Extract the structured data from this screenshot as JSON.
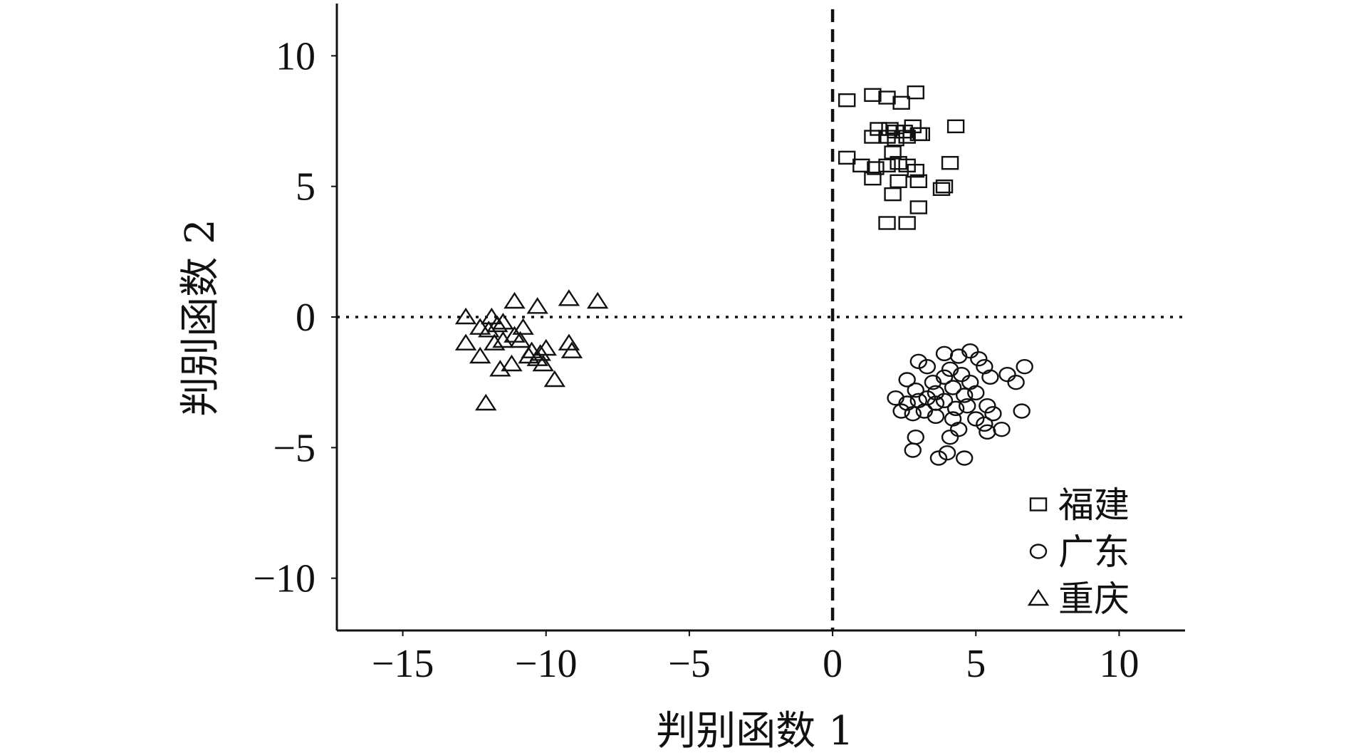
{
  "chart_data": {
    "type": "scatter",
    "xlabel": "判别函数 1",
    "ylabel": "判别函数 2",
    "xlim": [
      -17.3,
      12.3
    ],
    "ylim": [
      -12,
      12
    ],
    "xticks": [
      -15,
      -10,
      -5,
      0,
      5,
      10
    ],
    "yticks": [
      -10,
      -5,
      0,
      5,
      10
    ],
    "xtick_labels": [
      "−15",
      "−10",
      "−5",
      "0",
      "5",
      "10"
    ],
    "ytick_labels": [
      "−10",
      "−5",
      "0",
      "5",
      "10"
    ],
    "grid": false,
    "reference_lines": [
      {
        "orientation": "vertical",
        "value": 0,
        "style": "dashed"
      },
      {
        "orientation": "horizontal",
        "value": 0,
        "style": "dotted"
      }
    ],
    "legend_position": "bottom-right",
    "series": [
      {
        "name": "福建",
        "marker": "square",
        "points": [
          [
            0.5,
            6.1
          ],
          [
            0.5,
            8.3
          ],
          [
            1.4,
            8.5
          ],
          [
            1.9,
            8.4
          ],
          [
            2.4,
            8.2
          ],
          [
            2.9,
            8.6
          ],
          [
            1.6,
            7.2
          ],
          [
            2.0,
            7.2
          ],
          [
            2.2,
            7.1
          ],
          [
            2.5,
            7.1
          ],
          [
            2.8,
            7.3
          ],
          [
            3.1,
            7.0
          ],
          [
            4.3,
            7.3
          ],
          [
            1.4,
            6.9
          ],
          [
            1.9,
            6.9
          ],
          [
            2.2,
            6.8
          ],
          [
            2.6,
            6.9
          ],
          [
            3.0,
            7.0
          ],
          [
            2.1,
            6.3
          ],
          [
            1.0,
            5.8
          ],
          [
            1.5,
            5.7
          ],
          [
            1.9,
            5.8
          ],
          [
            2.3,
            5.9
          ],
          [
            2.6,
            5.8
          ],
          [
            2.9,
            5.6
          ],
          [
            4.1,
            5.9
          ],
          [
            1.4,
            5.3
          ],
          [
            2.3,
            5.2
          ],
          [
            3.0,
            5.2
          ],
          [
            3.8,
            4.9
          ],
          [
            3.9,
            5.0
          ],
          [
            2.1,
            4.7
          ],
          [
            3.0,
            4.2
          ],
          [
            1.9,
            3.6
          ],
          [
            2.6,
            3.6
          ]
        ]
      },
      {
        "name": "广东",
        "marker": "circle",
        "points": [
          [
            4.8,
            -1.3
          ],
          [
            3.9,
            -1.4
          ],
          [
            4.4,
            -1.5
          ],
          [
            3.0,
            -1.7
          ],
          [
            3.3,
            -1.9
          ],
          [
            5.1,
            -1.6
          ],
          [
            5.3,
            -1.9
          ],
          [
            6.7,
            -1.9
          ],
          [
            6.1,
            -2.2
          ],
          [
            6.4,
            -2.5
          ],
          [
            5.5,
            -2.3
          ],
          [
            4.1,
            -2.0
          ],
          [
            3.9,
            -2.3
          ],
          [
            4.5,
            -2.2
          ],
          [
            4.8,
            -2.5
          ],
          [
            4.2,
            -2.7
          ],
          [
            3.5,
            -2.5
          ],
          [
            2.6,
            -2.4
          ],
          [
            2.9,
            -2.8
          ],
          [
            3.6,
            -2.9
          ],
          [
            4.6,
            -3.0
          ],
          [
            5.0,
            -2.9
          ],
          [
            2.2,
            -3.1
          ],
          [
            2.6,
            -3.3
          ],
          [
            3.0,
            -3.2
          ],
          [
            3.3,
            -3.1
          ],
          [
            3.6,
            -3.3
          ],
          [
            3.9,
            -3.2
          ],
          [
            4.3,
            -3.5
          ],
          [
            4.7,
            -3.4
          ],
          [
            5.4,
            -3.4
          ],
          [
            5.6,
            -3.7
          ],
          [
            6.6,
            -3.6
          ],
          [
            2.4,
            -3.6
          ],
          [
            2.8,
            -3.7
          ],
          [
            3.2,
            -3.6
          ],
          [
            3.6,
            -3.8
          ],
          [
            4.2,
            -3.9
          ],
          [
            5.0,
            -3.9
          ],
          [
            5.3,
            -4.1
          ],
          [
            5.9,
            -4.3
          ],
          [
            4.4,
            -4.3
          ],
          [
            5.4,
            -4.4
          ],
          [
            2.9,
            -4.6
          ],
          [
            4.1,
            -4.6
          ],
          [
            2.8,
            -5.1
          ],
          [
            4.0,
            -5.2
          ],
          [
            3.7,
            -5.4
          ],
          [
            4.6,
            -5.4
          ]
        ]
      },
      {
        "name": "重庆",
        "marker": "triangle",
        "points": [
          [
            -9.2,
            0.7
          ],
          [
            -8.2,
            0.6
          ],
          [
            -11.1,
            0.6
          ],
          [
            -10.3,
            0.4
          ],
          [
            -12.8,
            0.0
          ],
          [
            -11.9,
            0.0
          ],
          [
            -11.5,
            -0.2
          ],
          [
            -11.7,
            -0.3
          ],
          [
            -12.3,
            -0.4
          ],
          [
            -12.0,
            -0.5
          ],
          [
            -10.8,
            -0.4
          ],
          [
            -11.1,
            -0.7
          ],
          [
            -10.9,
            -0.9
          ],
          [
            -11.5,
            -0.9
          ],
          [
            -11.8,
            -1.0
          ],
          [
            -12.8,
            -1.0
          ],
          [
            -10.5,
            -1.3
          ],
          [
            -10.0,
            -1.2
          ],
          [
            -9.2,
            -1.0
          ],
          [
            -9.1,
            -1.3
          ],
          [
            -10.2,
            -1.4
          ],
          [
            -10.6,
            -1.5
          ],
          [
            -12.3,
            -1.5
          ],
          [
            -10.3,
            -1.6
          ],
          [
            -10.1,
            -1.8
          ],
          [
            -11.2,
            -1.8
          ],
          [
            -11.6,
            -2.0
          ],
          [
            -9.7,
            -2.4
          ],
          [
            -12.1,
            -3.3
          ]
        ]
      }
    ]
  }
}
